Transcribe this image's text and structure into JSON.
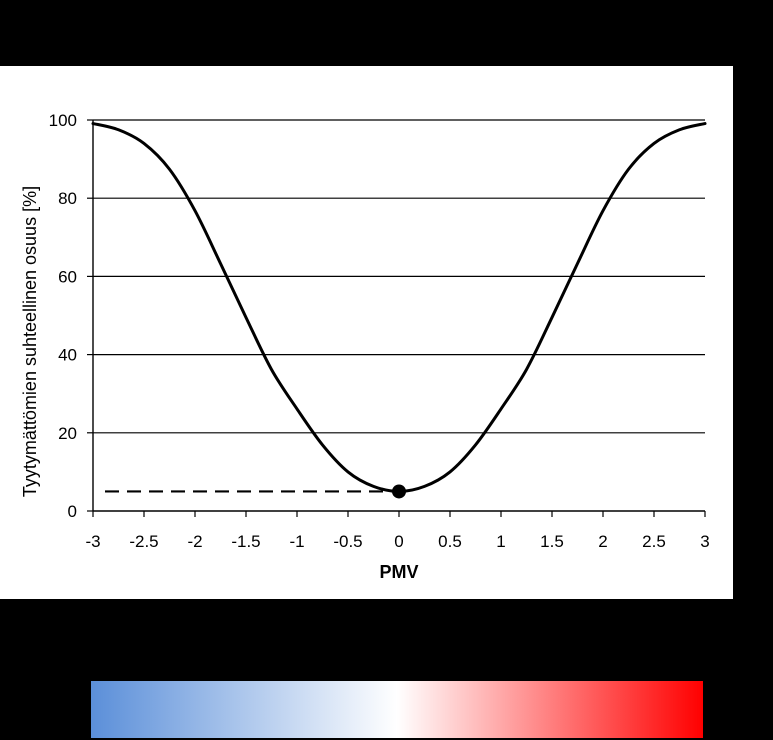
{
  "chart_data": {
    "type": "line",
    "title": "",
    "xlabel": "PMV",
    "ylabel": "Tyytymättömien suhteellinen osuus [%]",
    "xlim": [
      -3,
      3
    ],
    "ylim": [
      0,
      100
    ],
    "x_ticks": [
      "-3",
      "-2.5",
      "-2",
      "-1.5",
      "-1",
      "-0.5",
      "0",
      "0.5",
      "1",
      "1.5",
      "2",
      "2.5",
      "3"
    ],
    "y_ticks": [
      "0",
      "20",
      "40",
      "60",
      "80",
      "100"
    ],
    "grid": "horizontal",
    "series": [
      {
        "x": [
          -3,
          -2.75,
          -2.5,
          -2.25,
          -2,
          -1.75,
          -1.5,
          -1.25,
          -1,
          -0.75,
          -0.5,
          -0.25,
          0,
          0.25,
          0.5,
          0.75,
          1,
          1.25,
          1.5,
          1.75,
          2,
          2.25,
          2.5,
          2.75,
          3
        ],
        "values": [
          99.1,
          97.5,
          94.0,
          87.4,
          76.8,
          63.3,
          49.5,
          36.2,
          26.1,
          16.9,
          10.0,
          6.3,
          5.0,
          6.3,
          10.0,
          16.9,
          26.1,
          36.2,
          49.5,
          63.3,
          76.8,
          87.4,
          94.0,
          97.5,
          99.1
        ],
        "color": "#000000"
      }
    ],
    "annotations": [
      {
        "type": "point",
        "x": 0,
        "y": 5,
        "color": "#000000"
      },
      {
        "type": "dashed-hline",
        "x_from": -3,
        "x_to": 0,
        "y": 5,
        "color": "#000000"
      }
    ]
  },
  "color_scale": {
    "colors": [
      "#5b8fd9",
      "#ffffff",
      "#ff0000"
    ]
  }
}
